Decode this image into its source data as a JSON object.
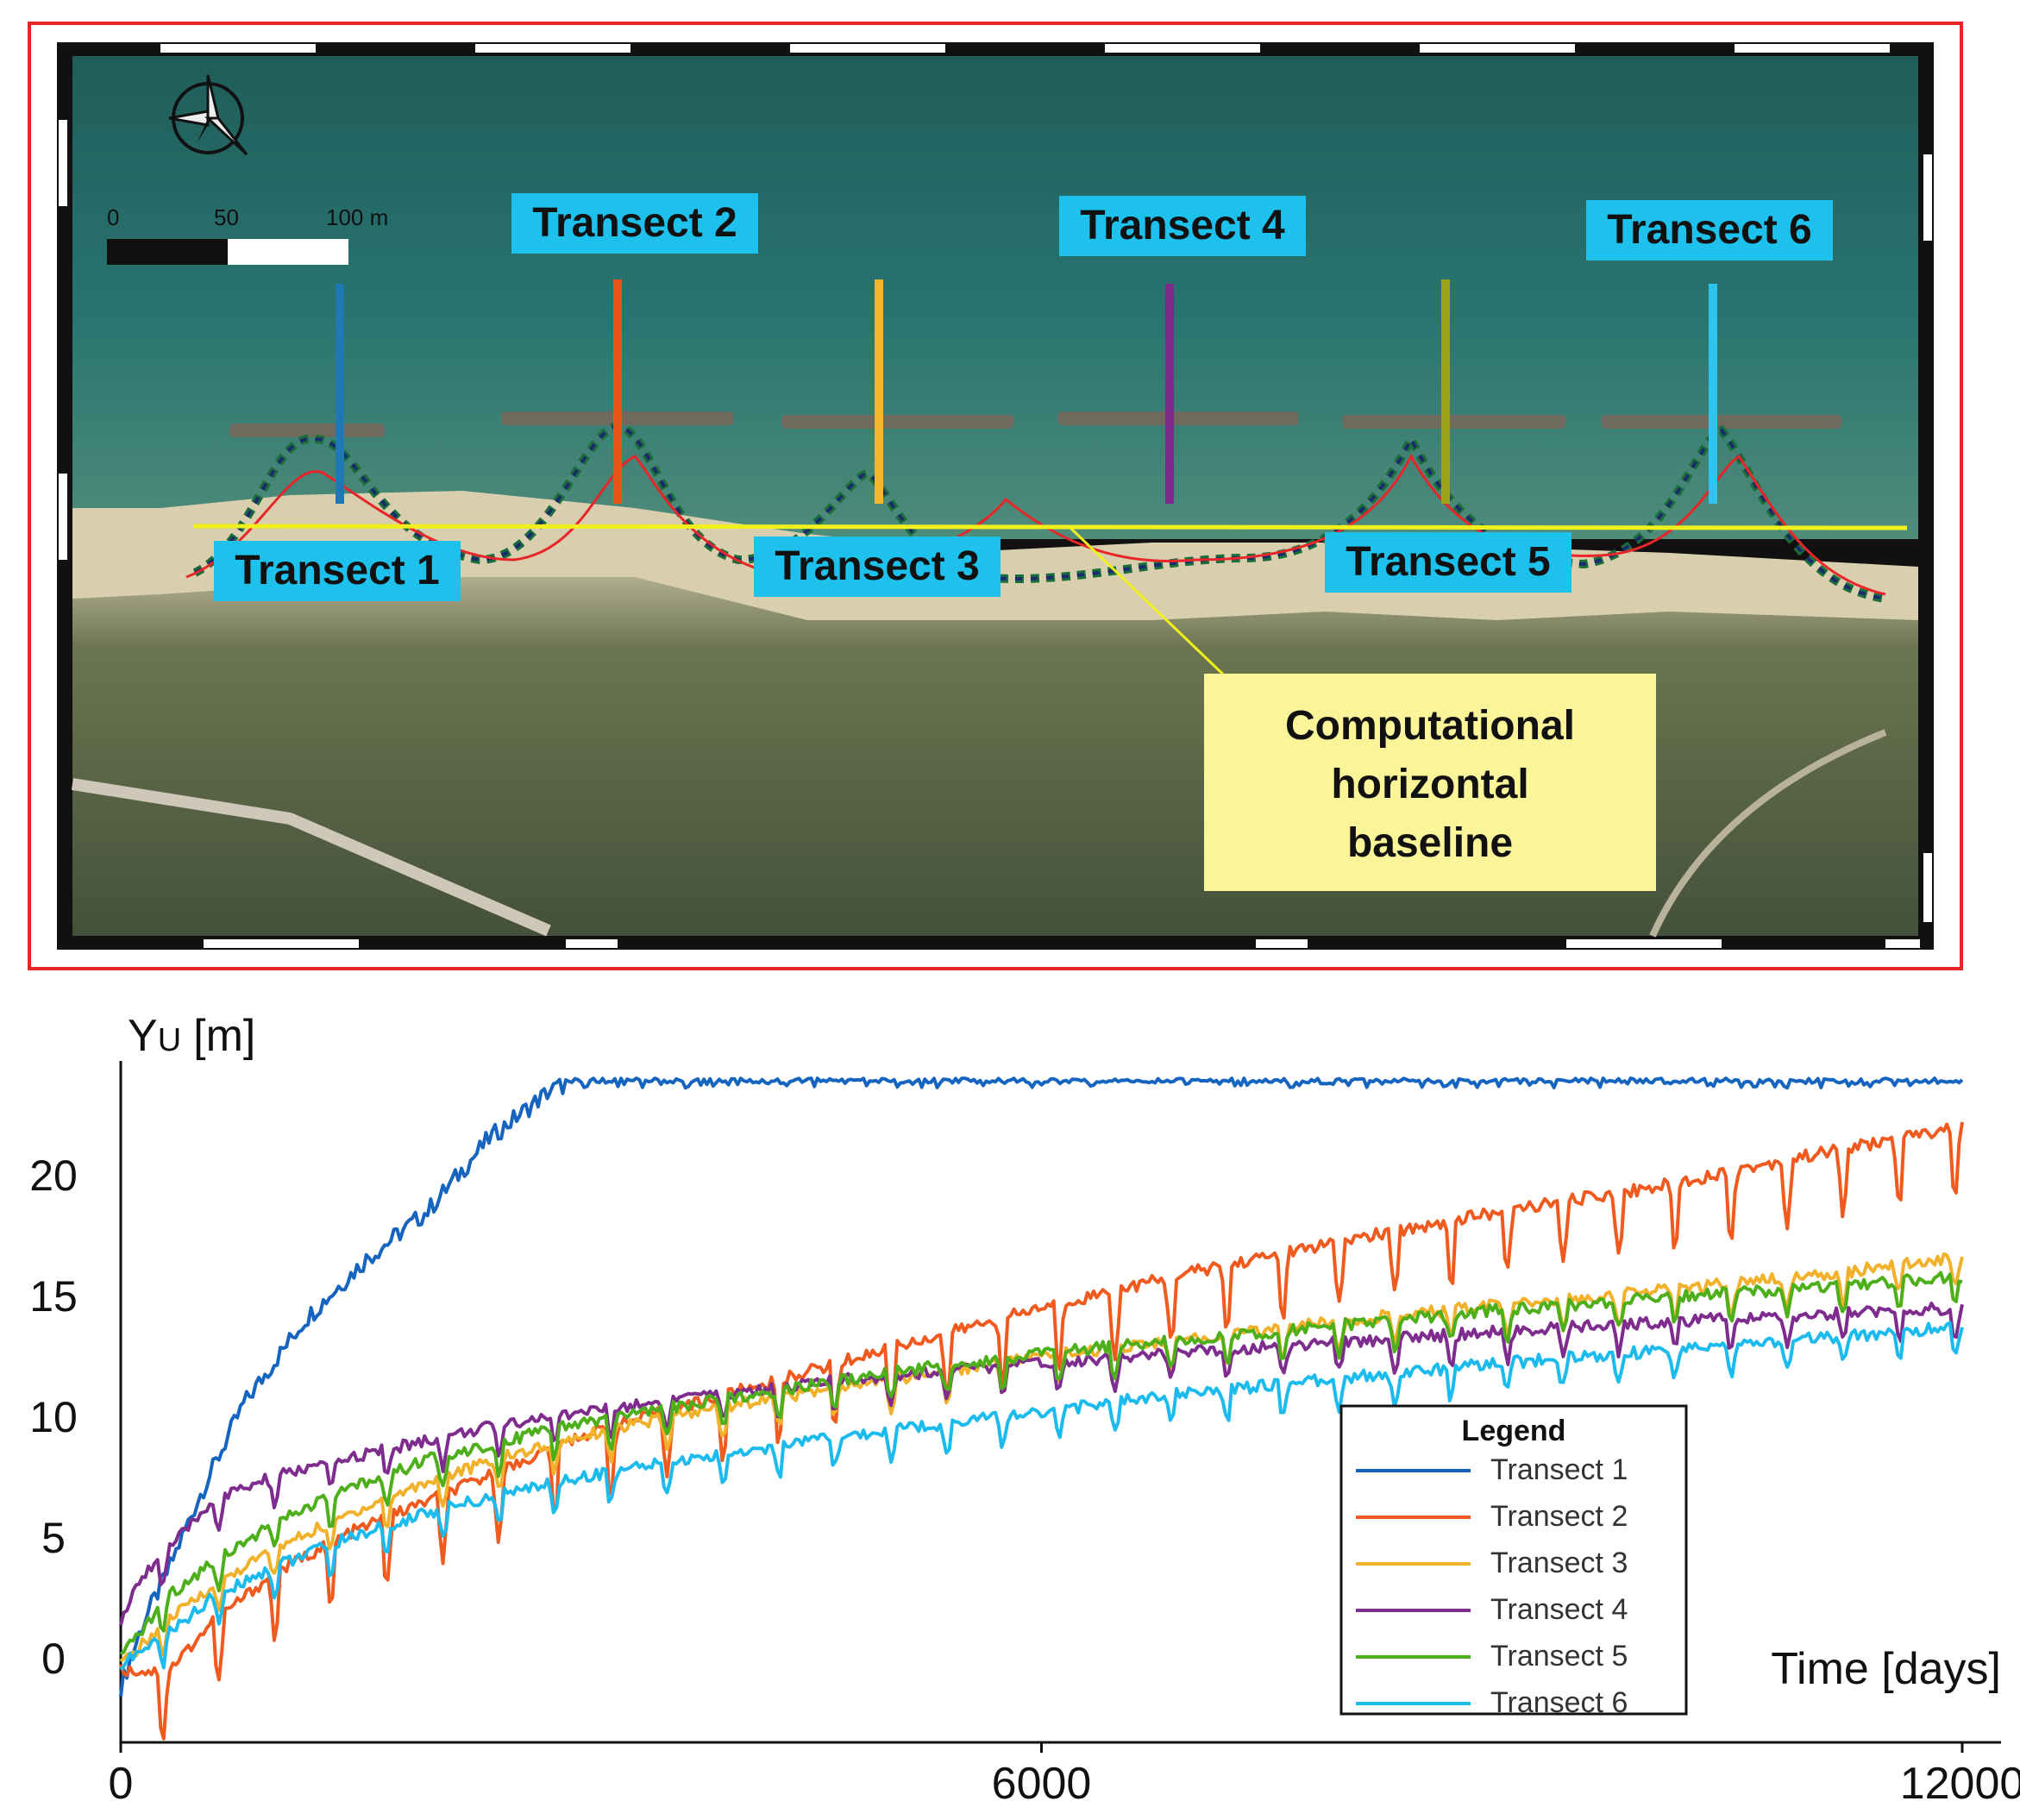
{
  "map": {
    "scale_bar": {
      "ticks": [
        "0",
        "50",
        "100 m"
      ]
    },
    "transects": [
      {
        "label": "Transect 1",
        "color": "#1f77b4"
      },
      {
        "label": "Transect 2",
        "color": "#e8541a"
      },
      {
        "label": "Transect 3",
        "color": "#f2b62a"
      },
      {
        "label": "Transect 4",
        "color": "#7d2a8c"
      },
      {
        "label": "Transect 5",
        "color": "#9aa31a"
      },
      {
        "label": "Transect 6",
        "color": "#2fc3ef"
      }
    ],
    "callout_lines": [
      "Computational",
      "horizontal",
      "baseline"
    ],
    "label_bg": "#1ec0ec",
    "callout_bg": "#fbf59a",
    "baseline_color": "#f1ef1c",
    "frame_color": "#e8262a"
  },
  "chart_data": {
    "type": "line",
    "ylabel_main": "Y",
    "ylabel_sub": "U",
    "ylabel_unit": "[m]",
    "xlabel": "Time [days]",
    "xlim": [
      0,
      12000
    ],
    "ylim": [
      -3.5,
      24
    ],
    "xticks": [
      "0",
      "6000",
      "12000"
    ],
    "yticks": [
      "0",
      "5",
      "10",
      "15",
      "20"
    ],
    "legend_title": "Legend",
    "legend_position": "lower-right",
    "series": [
      {
        "name": "Transect 1",
        "color": "#1565c0",
        "x": [
          0,
          150,
          300,
          500,
          800,
          1200,
          1600,
          2000,
          2400,
          2800,
          3000,
          4000,
          6000,
          8000,
          10000,
          12000
        ],
        "y": [
          -1.2,
          1.5,
          3.5,
          6.5,
          10.5,
          14,
          16.5,
          18.5,
          21.5,
          23.5,
          24,
          24,
          24,
          24,
          24,
          24
        ]
      },
      {
        "name": "Transect 2",
        "color": "#f05a1e",
        "x": [
          0,
          300,
          600,
          1000,
          1500,
          2000,
          2500,
          3000,
          4000,
          5000,
          6000,
          7000,
          8000,
          9000,
          10000,
          11000,
          12000
        ],
        "y": [
          -0.5,
          -0.6,
          1.5,
          3.5,
          5.2,
          6.5,
          7.8,
          9.2,
          11,
          12.8,
          14.5,
          16,
          17.3,
          18.5,
          19.5,
          20.8,
          22
        ]
      },
      {
        "name": "Transect 3",
        "color": "#f2b12a",
        "x": [
          0,
          300,
          600,
          1000,
          1500,
          2000,
          2500,
          3000,
          4000,
          5000,
          6000,
          7000,
          8000,
          9000,
          10000,
          11000,
          12000
        ],
        "y": [
          -0.3,
          1.5,
          3,
          4.5,
          6,
          7.3,
          8.3,
          9.2,
          10.5,
          11.5,
          12.5,
          13.2,
          14,
          14.6,
          15.2,
          15.8,
          16.6
        ]
      },
      {
        "name": "Transect 4",
        "color": "#7e2c8e",
        "x": [
          0,
          150,
          300,
          600,
          1000,
          1500,
          2000,
          2500,
          3000,
          4000,
          5000,
          6000,
          7000,
          8000,
          9000,
          10000,
          11000,
          12000
        ],
        "y": [
          1.5,
          3.5,
          4.4,
          6.5,
          7.5,
          8.3,
          9,
          9.7,
          10.2,
          11,
          11.7,
          12.2,
          12.7,
          13.1,
          13.5,
          13.9,
          14.2,
          14.5
        ]
      },
      {
        "name": "Transect 5",
        "color": "#4daf1a",
        "x": [
          0,
          300,
          600,
          1000,
          1500,
          2000,
          2500,
          3000,
          4000,
          5000,
          6000,
          7000,
          8000,
          9000,
          10000,
          11000,
          12000
        ],
        "y": [
          0,
          2.5,
          4,
          5.6,
          7,
          8.2,
          9,
          9.7,
          10.8,
          11.8,
          12.6,
          13.2,
          13.8,
          14.4,
          14.9,
          15.3,
          15.8
        ]
      },
      {
        "name": "Transect 6",
        "color": "#1cbbee",
        "x": [
          0,
          300,
          600,
          1000,
          1500,
          2000,
          2500,
          3000,
          4000,
          5000,
          6000,
          7000,
          8000,
          9000,
          10000,
          11000,
          12000
        ],
        "y": [
          -0.3,
          1,
          2.5,
          3.8,
          5,
          6,
          6.8,
          7.5,
          8.5,
          9.4,
          10.2,
          11,
          11.6,
          12.2,
          12.7,
          13.2,
          13.7
        ]
      }
    ]
  }
}
